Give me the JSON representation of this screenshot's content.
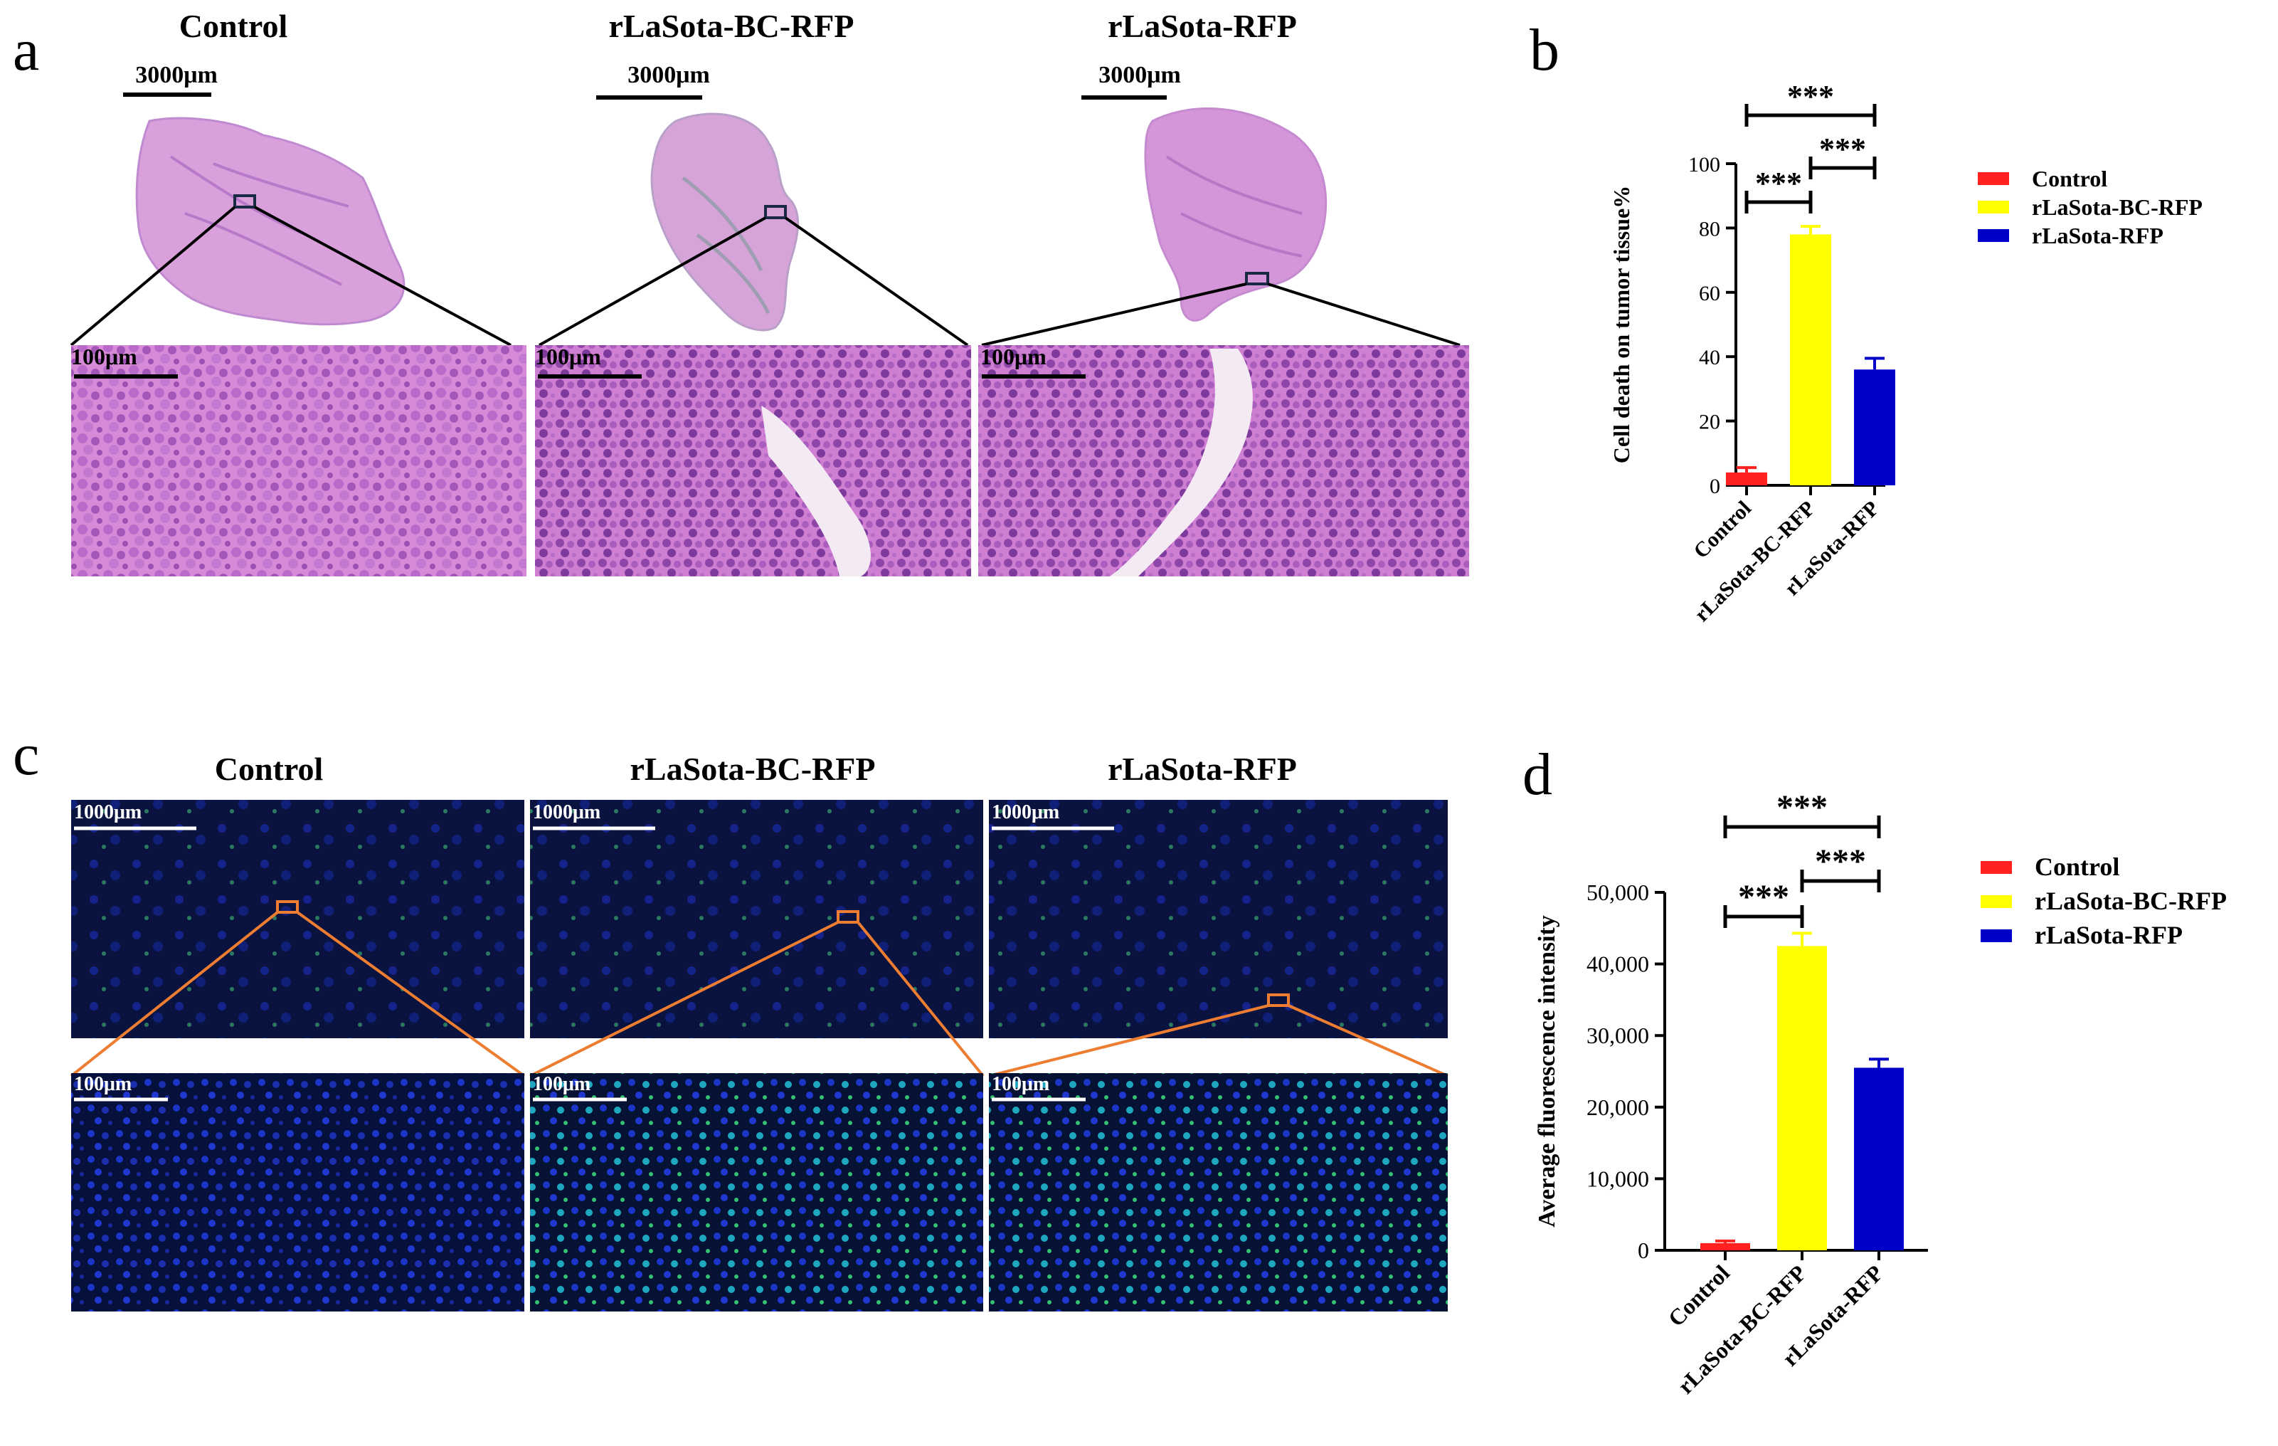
{
  "panels": {
    "a": {
      "letter": "a",
      "groups": [
        "Control",
        "rLaSota-BC-RFP",
        "rLaSota-RFP"
      ],
      "overview_scale": "3000μm",
      "zoom_scale": "100μm"
    },
    "b": {
      "letter": "b",
      "chart_data": {
        "type": "bar",
        "categories": [
          "Control",
          "rLaSota-BC-RFP",
          "rLaSota-RFP"
        ],
        "values": [
          4,
          78,
          36
        ],
        "errors": [
          1.5,
          2.5,
          3.5
        ],
        "ylabel": "Cell death on tumor tissue%",
        "ylim": [
          0,
          100
        ],
        "yticks": [
          0,
          20,
          40,
          60,
          80,
          100
        ],
        "ytick_labels": [
          "0",
          "20",
          "40",
          "60",
          "80",
          "100"
        ],
        "colors": [
          "#ff2020",
          "#ffff00",
          "#0000c8"
        ],
        "legend": [
          "Control",
          "rLaSota-BC-RFP",
          "rLaSota-RFP"
        ],
        "legend_position": "right",
        "significance": [
          {
            "from": 0,
            "to": 1,
            "label": "***"
          },
          {
            "from": 1,
            "to": 2,
            "label": "***"
          },
          {
            "from": 0,
            "to": 2,
            "label": "***"
          }
        ]
      }
    },
    "c": {
      "letter": "c",
      "groups": [
        "Control",
        "rLaSota-BC-RFP",
        "rLaSota-RFP"
      ],
      "overview_scale": "1000μm",
      "zoom_scale": "100μm"
    },
    "d": {
      "letter": "d",
      "chart_data": {
        "type": "bar",
        "categories": [
          "Control",
          "rLaSota-BC-RFP",
          "rLaSota-RFP"
        ],
        "values": [
          1000,
          42500,
          25500
        ],
        "errors": [
          300,
          1800,
          1200
        ],
        "ylabel": "Average fluorescence intensity",
        "ylim": [
          0,
          50000
        ],
        "yticks": [
          0,
          10000,
          20000,
          30000,
          40000,
          50000
        ],
        "ytick_labels": [
          "0",
          "10,000",
          "20,000",
          "30,000",
          "40,000",
          "50,000"
        ],
        "colors": [
          "#ff2020",
          "#ffff00",
          "#0000c8"
        ],
        "legend": [
          "Control",
          "rLaSota-BC-RFP",
          "rLaSota-RFP"
        ],
        "legend_position": "right",
        "significance": [
          {
            "from": 0,
            "to": 1,
            "label": "***"
          },
          {
            "from": 1,
            "to": 2,
            "label": "***"
          },
          {
            "from": 0,
            "to": 2,
            "label": "***"
          }
        ]
      }
    }
  }
}
